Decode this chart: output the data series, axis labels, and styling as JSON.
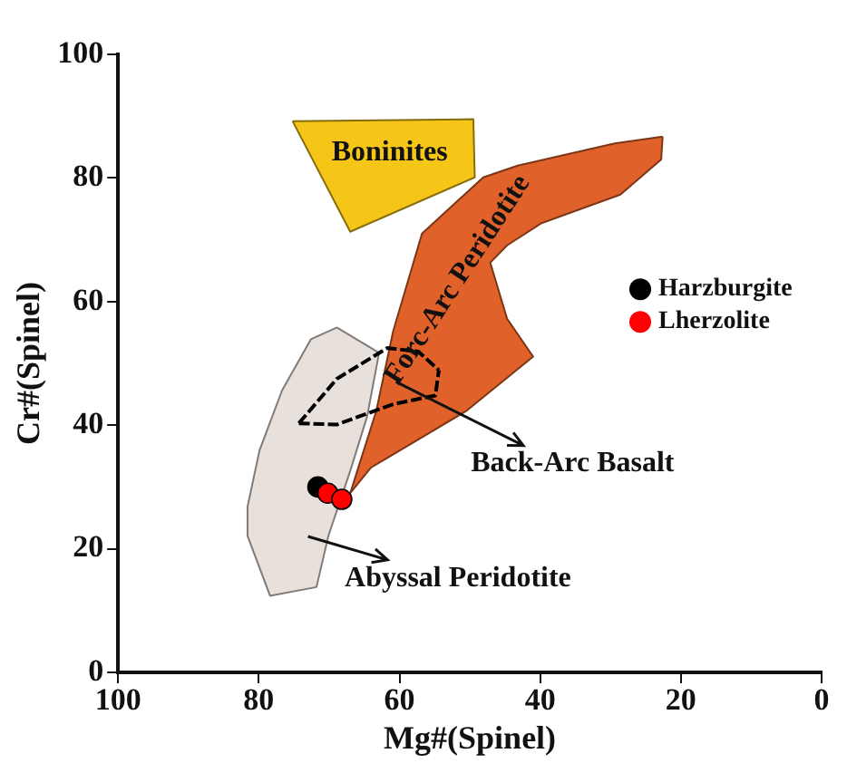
{
  "chart_data": {
    "type": "scatter",
    "xlabel": "Mg#(Spinel)",
    "ylabel": "Cr#(Spinel)",
    "xlim": [
      100,
      0
    ],
    "xticks": [
      100,
      80,
      60,
      40,
      20,
      0
    ],
    "ylim": [
      0,
      100
    ],
    "yticks": [
      0,
      20,
      40,
      60,
      80,
      100
    ],
    "grid": false,
    "legend": "right",
    "series": [
      {
        "type": "area",
        "color": "#e8e0da",
        "x": [
          68.9,
          62.9,
          64.6,
          67.0,
          70.1,
          71.8,
          78.4,
          81.6,
          81.6,
          79.9,
          76.7,
          72.6
        ],
        "values": [
          55.8,
          51.7,
          41.4,
          32.6,
          22.1,
          13.8,
          12.4,
          22.1,
          26.8,
          35.9,
          45.6,
          53.9
        ]
      },
      {
        "type": "area",
        "color": "#e0622a",
        "x": [
          22.6,
          29.4,
          43.2,
          48.1,
          56.8,
          60.9,
          63.3,
          67.0,
          64.1,
          50.5,
          41.0,
          44.7,
          47.1,
          44.7,
          39.8,
          28.6,
          22.8
        ],
        "values": [
          86.7,
          85.6,
          82.0,
          80.1,
          71.0,
          55.2,
          42.3,
          29.0,
          33.1,
          42.3,
          51.1,
          57.2,
          66.3,
          69.1,
          72.7,
          77.3,
          83.0
        ]
      },
      {
        "type": "area",
        "color": "#f5c518",
        "x": [
          75.2,
          49.5,
          49.3,
          67.0
        ],
        "values": [
          89.2,
          89.5,
          80.1,
          71.3
        ]
      },
      {
        "type": "line",
        "line_style": "dashed",
        "color": "#000000",
        "x": [
          74.3,
          68.9,
          61.7,
          57.3,
          54.4
        ],
        "values": [
          40.3,
          47.5,
          52.5,
          51.9,
          48.9
        ]
      },
      {
        "type": "line",
        "line_style": "dashed",
        "color": "#000000",
        "x": [
          74.3,
          68.9,
          60.9,
          54.9,
          54.4
        ],
        "values": [
          40.3,
          40.1,
          43.4,
          44.8,
          48.9
        ]
      },
      {
        "name": "Harzburgite",
        "marker": "circle",
        "color": "#000000",
        "x": [
          71.6
        ],
        "values": [
          30.0
        ]
      },
      {
        "name": "Lherzolite",
        "marker": "circle",
        "color": "#ff0000",
        "x": [
          70.2,
          68.2
        ],
        "values": [
          29.0,
          28.0
        ]
      }
    ],
    "annotations": [
      "Boninites",
      "Forc-Arc Peridotite",
      "Back-Arc Basalt",
      "Abyssal Peridotite"
    ]
  }
}
